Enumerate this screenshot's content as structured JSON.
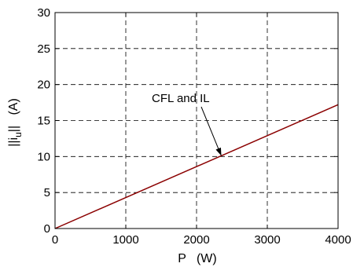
{
  "chart_data": {
    "type": "line",
    "title": "",
    "xlabel": "P   (W)",
    "ylabel_main": "||i",
    "ylabel_sub": "u",
    "ylabel_tail": "||   (A)",
    "xlim": [
      0,
      4000
    ],
    "ylim": [
      0,
      30
    ],
    "xticks": [
      0,
      1000,
      2000,
      3000,
      4000
    ],
    "yticks": [
      0,
      5,
      10,
      15,
      20,
      25,
      30
    ],
    "x_tick_labels": [
      "0",
      "1000",
      "2000",
      "3000",
      "4000"
    ],
    "y_tick_labels": [
      "0",
      "5",
      "10",
      "15",
      "20",
      "25",
      "30"
    ],
    "grid": true,
    "series": [
      {
        "color": "#8b0000",
        "x": [
          0,
          4000
        ],
        "y": [
          0,
          17.2
        ]
      }
    ],
    "annotation": {
      "text": "CFL  and  IL",
      "point": [
        2350,
        10.1
      ]
    }
  }
}
